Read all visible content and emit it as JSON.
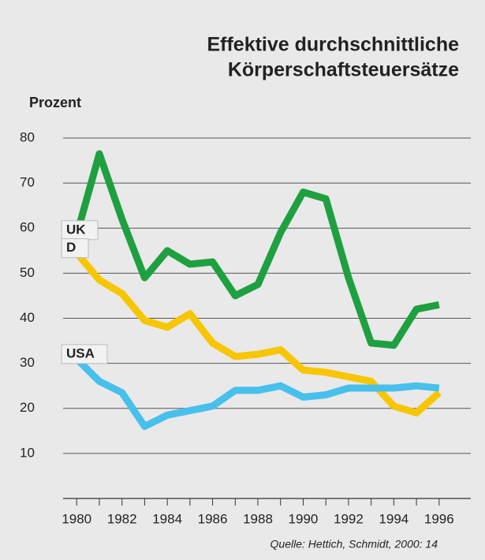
{
  "chart_data": {
    "type": "line",
    "title": [
      "Effektive durchschnittliche",
      "Körperschaftsteuersätze"
    ],
    "ylabel": "Prozent",
    "source": "Quelle: Hettich, Schmidt, 2000: 14",
    "x": [
      1980,
      1981,
      1982,
      1983,
      1984,
      1985,
      1986,
      1987,
      1988,
      1989,
      1990,
      1991,
      1992,
      1993,
      1994,
      1995,
      1996
    ],
    "series": [
      {
        "name": "UK",
        "color": "#1fa040",
        "values": [
          58.5,
          76.5,
          62,
          49,
          55,
          52,
          52.5,
          45,
          47.5,
          59,
          68,
          66.5,
          49,
          34.5,
          34,
          42,
          43
        ]
      },
      {
        "name": "D",
        "color": "#f7c600",
        "values": [
          54.5,
          48.5,
          45.5,
          39.5,
          38,
          41,
          34.5,
          31.5,
          32,
          33,
          28.5,
          28,
          27,
          26,
          20.5,
          19,
          23.5
        ]
      },
      {
        "name": "USA",
        "color": "#48c0ec",
        "values": [
          31,
          26,
          23.5,
          16,
          18.5,
          19.5,
          20.5,
          24,
          24,
          25,
          22.5,
          23,
          24.5,
          24.5,
          24.5,
          25,
          24.5
        ]
      }
    ],
    "xlim": [
      1979.4,
      1997.4
    ],
    "xticks": [
      1980,
      1982,
      1984,
      1986,
      1988,
      1990,
      1992,
      1994,
      1996
    ],
    "xminorticks": [
      1981,
      1983,
      1985,
      1987,
      1989,
      1991,
      1993,
      1995
    ],
    "ylim": [
      0,
      80
    ],
    "yticks": [
      10,
      20,
      30,
      40,
      50,
      60,
      70,
      80
    ],
    "grid": true
  }
}
